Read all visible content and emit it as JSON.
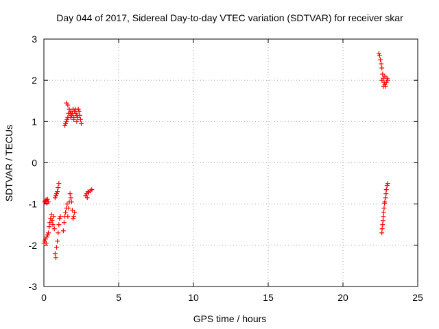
{
  "chart_data": {
    "type": "scatter",
    "title": "Day 044 of 2017, Sidereal Day-to-day VTEC variation (SDTVAR) for receiver skar",
    "xlabel": "GPS time / hours",
    "ylabel": "SDTVAR / TECUs",
    "xlim": [
      0,
      25
    ],
    "ylim": [
      -3,
      3
    ],
    "xticks": [
      "0",
      "5",
      "10",
      "15",
      "20",
      "25"
    ],
    "yticks": [
      "-3",
      "-2",
      "-1",
      "0",
      "1",
      "2",
      "3"
    ],
    "grid": true,
    "marker": "+",
    "color": "#ff0000",
    "series": [
      {
        "name": "SDTVAR",
        "points": [
          [
            0.0,
            -1.95
          ],
          [
            0.05,
            -1.9
          ],
          [
            0.1,
            -1.85
          ],
          [
            0.15,
            -1.95
          ],
          [
            0.2,
            -1.8
          ],
          [
            0.25,
            -1.75
          ],
          [
            0.3,
            -1.7
          ],
          [
            0.35,
            -1.55
          ],
          [
            0.4,
            -1.45
          ],
          [
            0.45,
            -1.35
          ],
          [
            0.5,
            -1.25
          ],
          [
            0.55,
            -1.4
          ],
          [
            0.6,
            -1.5
          ],
          [
            0.65,
            -1.3
          ],
          [
            0.7,
            -1.6
          ],
          [
            0.75,
            -2.2
          ],
          [
            0.8,
            -2.3
          ],
          [
            0.85,
            -2.05
          ],
          [
            0.9,
            -1.9
          ],
          [
            0.95,
            -1.7
          ],
          [
            1.0,
            -1.5
          ],
          [
            1.05,
            -1.35
          ],
          [
            1.1,
            -1.3
          ],
          [
            0.05,
            -0.95
          ],
          [
            0.1,
            -0.92
          ],
          [
            0.15,
            -0.9
          ],
          [
            0.2,
            -0.98
          ],
          [
            0.25,
            -0.88
          ],
          [
            0.3,
            -0.95
          ],
          [
            0.75,
            -0.85
          ],
          [
            0.8,
            -0.8
          ],
          [
            0.85,
            -0.75
          ],
          [
            0.9,
            -0.7
          ],
          [
            0.95,
            -0.6
          ],
          [
            1.0,
            -0.5
          ],
          [
            1.3,
            -1.65
          ],
          [
            1.35,
            -1.45
          ],
          [
            1.4,
            -1.3
          ],
          [
            1.45,
            -1.2
          ],
          [
            1.5,
            -1.1
          ],
          [
            1.55,
            -1.0
          ],
          [
            1.6,
            -1.3
          ],
          [
            1.65,
            -1.1
          ],
          [
            1.7,
            -0.95
          ],
          [
            1.75,
            -0.75
          ],
          [
            1.8,
            -0.85
          ],
          [
            1.85,
            -0.95
          ],
          [
            1.9,
            -1.15
          ],
          [
            1.95,
            -1.35
          ],
          [
            2.0,
            -1.3
          ],
          [
            2.05,
            -1.2
          ],
          [
            2.8,
            -0.8
          ],
          [
            2.85,
            -0.75
          ],
          [
            2.9,
            -0.85
          ],
          [
            2.95,
            -0.7
          ],
          [
            3.0,
            -0.72
          ],
          [
            3.1,
            -0.68
          ],
          [
            3.2,
            -0.65
          ],
          [
            1.4,
            0.9
          ],
          [
            1.45,
            0.95
          ],
          [
            1.5,
            1.0
          ],
          [
            1.55,
            1.05
          ],
          [
            1.6,
            1.1
          ],
          [
            1.65,
            1.2
          ],
          [
            1.7,
            1.3
          ],
          [
            1.75,
            1.2
          ],
          [
            1.8,
            1.25
          ],
          [
            1.85,
            1.15
          ],
          [
            1.9,
            1.2
          ],
          [
            1.95,
            1.3
          ],
          [
            2.0,
            1.1
          ],
          [
            2.05,
            1.25
          ],
          [
            2.1,
            1.3
          ],
          [
            2.15,
            1.2
          ],
          [
            2.2,
            1.15
          ],
          [
            2.25,
            1.1
          ],
          [
            2.3,
            1.3
          ],
          [
            2.35,
            1.25
          ],
          [
            2.4,
            1.15
          ],
          [
            2.45,
            1.05
          ],
          [
            2.5,
            0.95
          ],
          [
            1.5,
            1.45
          ],
          [
            1.6,
            1.4
          ],
          [
            1.8,
            1.1
          ],
          [
            2.0,
            1.05
          ],
          [
            2.2,
            1.0
          ],
          [
            22.4,
            2.65
          ],
          [
            22.45,
            2.6
          ],
          [
            22.5,
            2.5
          ],
          [
            22.55,
            2.4
          ],
          [
            22.6,
            2.3
          ],
          [
            22.65,
            2.15
          ],
          [
            22.7,
            2.05
          ],
          [
            22.75,
            1.95
          ],
          [
            22.8,
            1.9
          ],
          [
            22.85,
            1.85
          ],
          [
            22.9,
            1.95
          ],
          [
            22.95,
            2.05
          ],
          [
            23.0,
            2.0
          ],
          [
            22.6,
            2.0
          ],
          [
            22.7,
            1.85
          ],
          [
            22.8,
            2.1
          ],
          [
            22.6,
            -1.7
          ],
          [
            22.62,
            -1.6
          ],
          [
            22.65,
            -1.5
          ],
          [
            22.68,
            -1.4
          ],
          [
            22.7,
            -1.3
          ],
          [
            22.72,
            -1.2
          ],
          [
            22.75,
            -1.1
          ],
          [
            22.78,
            -0.98
          ],
          [
            22.8,
            -0.95
          ],
          [
            22.85,
            -0.85
          ],
          [
            22.88,
            -0.75
          ],
          [
            22.9,
            -0.65
          ],
          [
            22.95,
            -0.55
          ],
          [
            23.0,
            -0.5
          ]
        ]
      }
    ]
  }
}
